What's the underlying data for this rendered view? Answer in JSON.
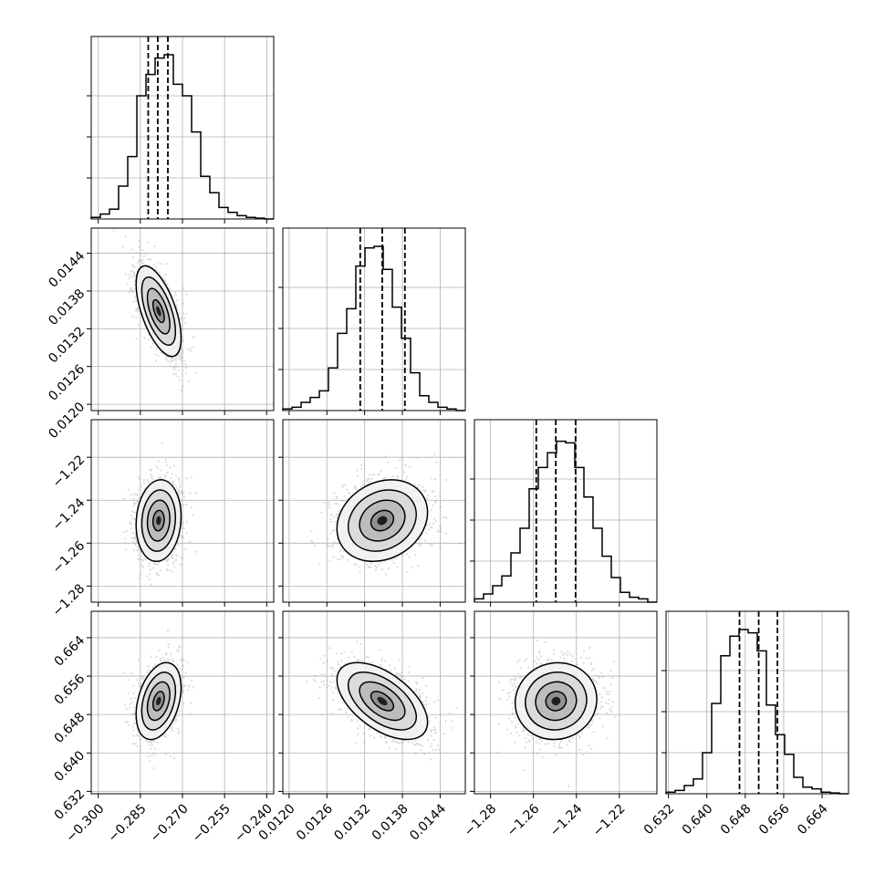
{
  "chart_data": {
    "type": "corner",
    "dimensions": [
      {
        "index": 0,
        "range": [
          -0.3025,
          -0.2375
        ],
        "ticks": [
          -0.3,
          -0.285,
          -0.27,
          -0.255,
          -0.24
        ],
        "tick_labels": [
          "−0.300",
          "−0.285",
          "−0.270",
          "−0.255",
          "−0.240"
        ],
        "mean": -0.2785,
        "sd": 0.004,
        "quantiles": [
          -0.2822,
          -0.2788,
          -0.2752
        ]
      },
      {
        "index": 1,
        "range": [
          0.0119,
          0.0148
        ],
        "ticks": [
          0.012,
          0.0126,
          0.0132,
          0.0138,
          0.0144
        ],
        "tick_labels": [
          "0.0120",
          "0.0126",
          "0.0132",
          "0.0138",
          "0.0144"
        ],
        "mean": 0.01348,
        "sd": 0.00036,
        "quantiles": [
          0.01313,
          0.01348,
          0.01384
        ]
      },
      {
        "index": 2,
        "range": [
          -1.2875,
          -1.2025
        ],
        "ticks": [
          -1.28,
          -1.26,
          -1.24,
          -1.22
        ],
        "tick_labels": [
          "−1.28",
          "−1.26",
          "−1.24",
          "−1.22"
        ],
        "mean": -1.2495,
        "sd": 0.0095,
        "quantiles": [
          -1.2587,
          -1.2496,
          -1.2404
        ]
      },
      {
        "index": 3,
        "range": [
          0.6315,
          0.6695
        ],
        "ticks": [
          0.632,
          0.64,
          0.648,
          0.656,
          0.664
        ],
        "tick_labels": [
          "0.632",
          "0.640",
          "0.648",
          "0.656",
          "0.664"
        ],
        "mean": 0.6508,
        "sd": 0.004,
        "quantiles": [
          0.6468,
          0.6508,
          0.6547
        ]
      }
    ],
    "histograms": [
      {
        "dimension": 0,
        "counts": [
          0.01,
          0.03,
          0.06,
          0.2,
          0.38,
          0.75,
          0.88,
          0.98,
          1.0,
          0.82,
          0.75,
          0.53,
          0.26,
          0.16,
          0.07,
          0.04,
          0.02,
          0.01,
          0.005,
          0.0
        ]
      },
      {
        "dimension": 1,
        "counts": [
          0.01,
          0.02,
          0.05,
          0.08,
          0.12,
          0.26,
          0.47,
          0.62,
          0.88,
          0.99,
          1.0,
          0.86,
          0.63,
          0.44,
          0.23,
          0.09,
          0.05,
          0.02,
          0.01,
          0.0
        ]
      },
      {
        "dimension": 2,
        "counts": [
          0.02,
          0.05,
          0.1,
          0.16,
          0.3,
          0.45,
          0.69,
          0.82,
          0.91,
          0.98,
          0.97,
          0.82,
          0.64,
          0.45,
          0.28,
          0.15,
          0.06,
          0.03,
          0.02,
          0.0
        ]
      },
      {
        "dimension": 3,
        "counts": [
          0.01,
          0.02,
          0.05,
          0.09,
          0.25,
          0.55,
          0.84,
          0.96,
          1.0,
          0.98,
          0.87,
          0.54,
          0.36,
          0.24,
          0.1,
          0.04,
          0.03,
          0.01,
          0.005,
          0.0
        ]
      }
    ],
    "correlations": [
      {
        "x": 0,
        "y": 1,
        "rho": -0.6
      },
      {
        "x": 0,
        "y": 2,
        "rho": 0.1
      },
      {
        "x": 1,
        "y": 2,
        "rho": 0.2
      },
      {
        "x": 0,
        "y": 3,
        "rho": 0.35
      },
      {
        "x": 1,
        "y": 3,
        "rho": -0.55
      },
      {
        "x": 2,
        "y": 3,
        "rho": 0.05
      }
    ],
    "contour_levels_sigma": [
      0.5,
      1.0,
      1.5,
      2.0
    ],
    "grid": true,
    "legend": "none"
  }
}
